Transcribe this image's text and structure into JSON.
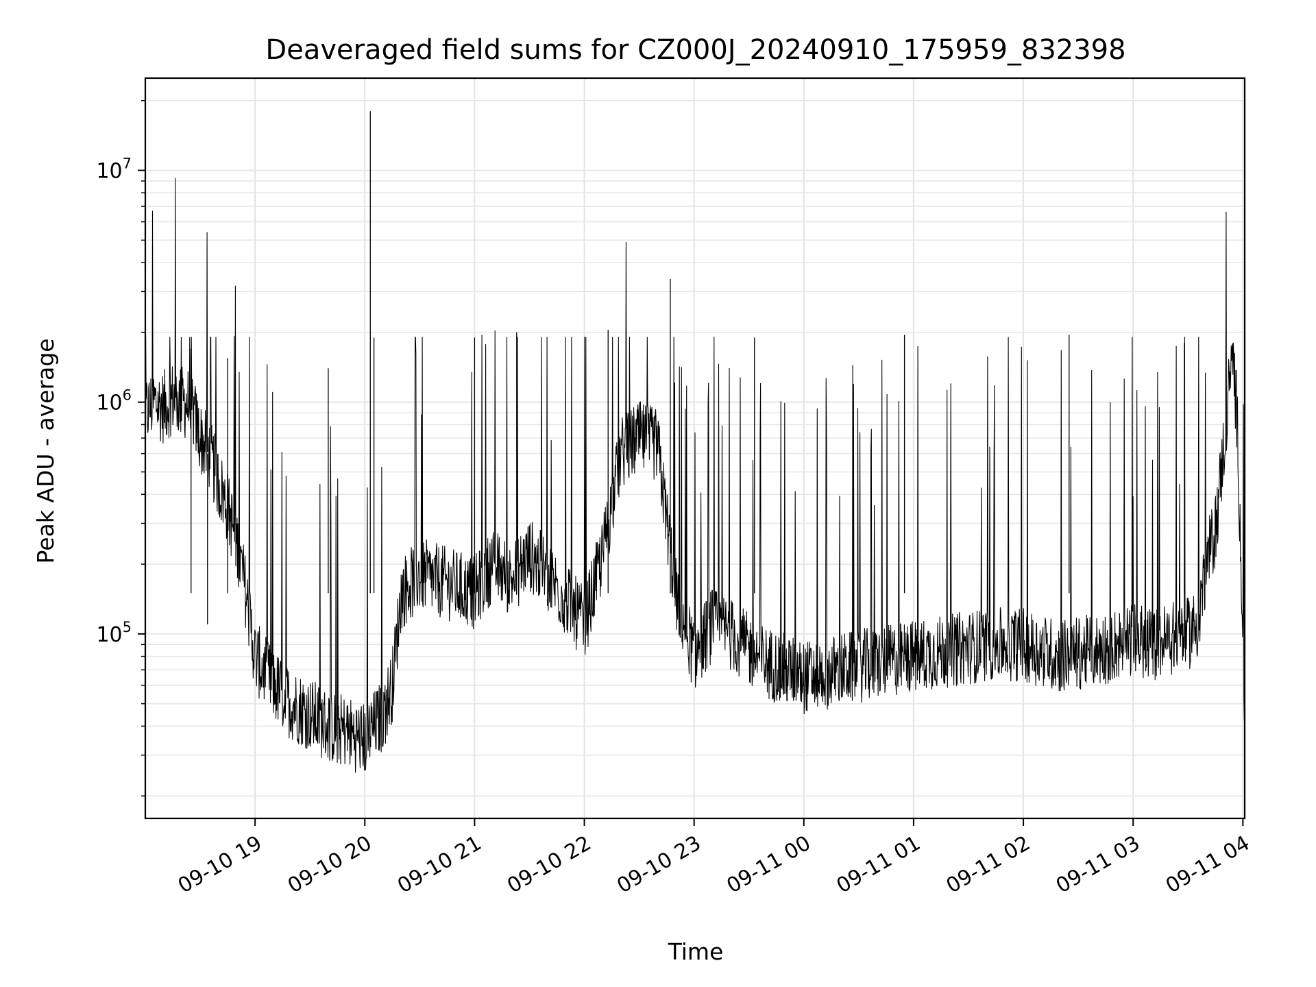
{
  "chart_data": {
    "type": "line",
    "title": "Deaveraged field sums for CZ000J_20240910_175959_832398",
    "xlabel": "Time",
    "ylabel": "Peak ADU - average",
    "yscale": "log",
    "ylim": [
      16000,
      25000000
    ],
    "xlim": [
      "2024-09-10 18:00",
      "2024-09-11 04:01"
    ],
    "grid": true,
    "legend": "none",
    "line_color": "#000000",
    "x_ticks": [
      {
        "x": "2024-09-10 19:00",
        "label": "09-10 19"
      },
      {
        "x": "2024-09-10 20:00",
        "label": "09-10 20"
      },
      {
        "x": "2024-09-10 21:00",
        "label": "09-10 21"
      },
      {
        "x": "2024-09-10 22:00",
        "label": "09-10 22"
      },
      {
        "x": "2024-09-10 23:00",
        "label": "09-10 23"
      },
      {
        "x": "2024-09-11 00:00",
        "label": "09-11 00"
      },
      {
        "x": "2024-09-11 01:00",
        "label": "09-11 01"
      },
      {
        "x": "2024-09-11 02:00",
        "label": "09-11 02"
      },
      {
        "x": "2024-09-11 03:00",
        "label": "09-11 03"
      },
      {
        "x": "2024-09-11 04:00",
        "label": "09-11 04"
      }
    ],
    "y_ticks": [
      {
        "value": 100000,
        "base": "10",
        "exp": "5"
      },
      {
        "value": 1000000,
        "base": "10",
        "exp": "6"
      },
      {
        "value": 10000000,
        "base": "10",
        "exp": "7"
      }
    ],
    "series": [
      {
        "x": [
          "2024-09-10 18:00",
          "2024-09-10 18:05",
          "2024-09-10 18:10",
          "2024-09-10 18:15",
          "2024-09-10 18:20",
          "2024-09-10 18:25",
          "2024-09-10 18:30",
          "2024-09-10 18:35",
          "2024-09-10 18:40",
          "2024-09-10 18:45",
          "2024-09-10 18:50",
          "2024-09-10 18:55",
          "2024-09-10 19:00",
          "2024-09-10 19:10",
          "2024-09-10 19:20",
          "2024-09-10 19:30",
          "2024-09-10 19:40",
          "2024-09-10 19:50",
          "2024-09-10 20:00",
          "2024-09-10 20:10",
          "2024-09-10 20:15",
          "2024-09-10 20:20",
          "2024-09-10 20:30",
          "2024-09-10 20:40",
          "2024-09-10 20:50",
          "2024-09-10 21:00",
          "2024-09-10 21:10",
          "2024-09-10 21:20",
          "2024-09-10 21:30",
          "2024-09-10 21:40",
          "2024-09-10 21:50",
          "2024-09-10 22:00",
          "2024-09-10 22:10",
          "2024-09-10 22:20",
          "2024-09-10 22:30",
          "2024-09-10 22:40",
          "2024-09-10 22:50",
          "2024-09-10 23:00",
          "2024-09-10 23:10",
          "2024-09-10 23:20",
          "2024-09-10 23:30",
          "2024-09-10 23:40",
          "2024-09-10 23:50",
          "2024-09-11 00:00",
          "2024-09-11 00:20",
          "2024-09-11 00:40",
          "2024-09-11 01:00",
          "2024-09-11 01:20",
          "2024-09-11 01:40",
          "2024-09-11 02:00",
          "2024-09-11 02:20",
          "2024-09-11 02:40",
          "2024-09-11 03:00",
          "2024-09-11 03:10",
          "2024-09-11 03:20",
          "2024-09-11 03:30",
          "2024-09-11 03:35",
          "2024-09-11 03:40",
          "2024-09-11 03:45",
          "2024-09-11 03:50",
          "2024-09-11 03:53",
          "2024-09-11 03:55",
          "2024-09-11 03:57",
          "2024-09-11 04:00",
          "2024-09-11 04:01"
        ],
        "y": [
          900000,
          1000000,
          950000,
          1050000,
          1000000,
          980000,
          700000,
          600000,
          450000,
          350000,
          250000,
          150000,
          80000,
          60000,
          50000,
          45000,
          40000,
          38000,
          35000,
          45000,
          60000,
          150000,
          180000,
          170000,
          160000,
          150000,
          200000,
          170000,
          220000,
          180000,
          140000,
          110000,
          220000,
          600000,
          700000,
          650000,
          150000,
          80000,
          110000,
          100000,
          85000,
          75000,
          70000,
          65000,
          70000,
          75000,
          80000,
          85000,
          90000,
          90000,
          80000,
          85000,
          95000,
          90000,
          95000,
          100000,
          110000,
          200000,
          280000,
          700000,
          1300000,
          1450000,
          800000,
          100000,
          40000
        ]
      }
    ],
    "spikes": [
      {
        "x": "2024-09-10 20:03",
        "y": 18000000
      },
      {
        "x": "2024-09-10 22:47",
        "y": 3400000
      },
      {
        "x": "2024-09-10 18:25",
        "y": 1700000
      },
      {
        "x": "2024-09-10 18:45",
        "y": 1550000
      },
      {
        "x": "2024-09-10 19:40",
        "y": 1400000
      },
      {
        "x": "2024-09-10 20:05",
        "y": 1900000
      },
      {
        "x": "2024-09-10 21:00",
        "y": 1900000
      },
      {
        "x": "2024-09-10 21:23",
        "y": 2000000
      },
      {
        "x": "2024-09-10 22:13",
        "y": 2050000
      },
      {
        "x": "2024-09-10 23:33",
        "y": 1900000
      },
      {
        "x": "2024-09-11 00:55",
        "y": 1950000
      },
      {
        "x": "2024-09-11 02:25",
        "y": 1950000
      },
      {
        "x": "2024-09-11 03:28",
        "y": 1800000
      },
      {
        "x": "2024-09-10 18:34",
        "y": 110000
      }
    ]
  }
}
